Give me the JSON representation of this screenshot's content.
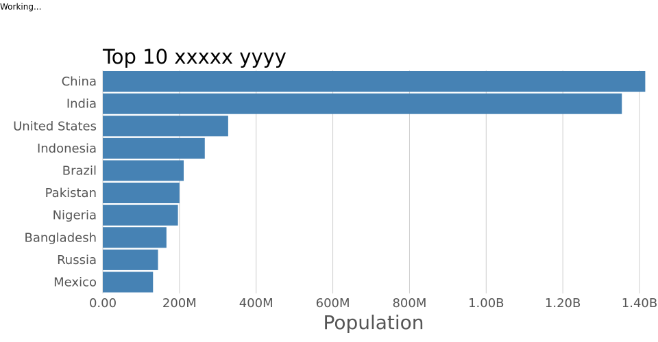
{
  "status_text": "Working...",
  "chart_data": {
    "type": "bar",
    "orientation": "horizontal",
    "title": "Top 10 xxxxx yyyy",
    "xlabel": "Population",
    "ylabel": "",
    "categories": [
      "China",
      "India",
      "United States",
      "Indonesia",
      "Brazil",
      "Pakistan",
      "Nigeria",
      "Bangladesh",
      "Russia",
      "Mexico"
    ],
    "values": [
      1415000000,
      1354000000,
      327000000,
      266000000,
      211000000,
      200000000,
      196000000,
      166000000,
      144000000,
      131000000
    ],
    "xlim": [
      0,
      1400000000
    ],
    "xticks": [
      0,
      200000000,
      400000000,
      600000000,
      800000000,
      1000000000,
      1200000000,
      1400000000
    ],
    "xtick_labels": [
      "0.00",
      "200M",
      "400M",
      "600M",
      "800M",
      "1.00B",
      "1.20B",
      "1.40B"
    ],
    "grid": true,
    "bar_color": "#4682b4",
    "legend": "none"
  }
}
